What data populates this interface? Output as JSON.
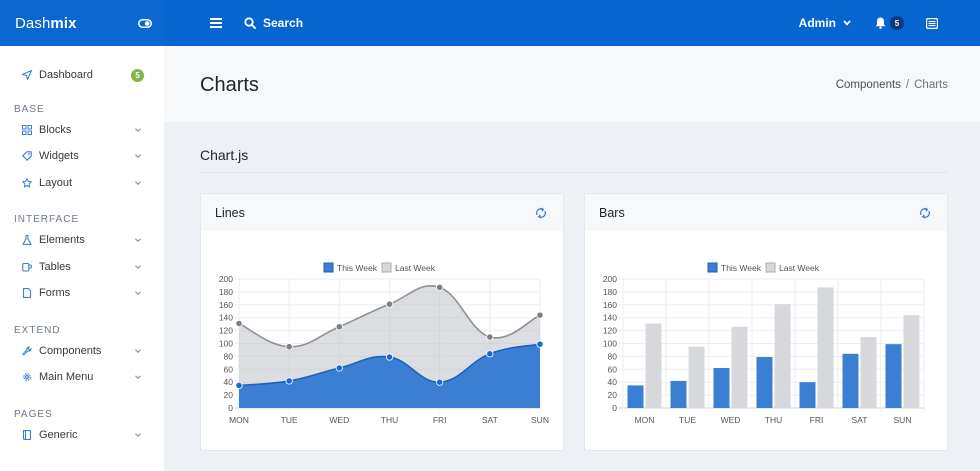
{
  "brand": {
    "prefix": "Dash",
    "suffix": "mix"
  },
  "sidebar": {
    "items": [
      {
        "label": "Dashboard",
        "badge": "5",
        "icon": "send-icon"
      },
      {
        "header": "BASE"
      },
      {
        "label": "Blocks",
        "icon": "grid-icon"
      },
      {
        "label": "Widgets",
        "icon": "tag-icon"
      },
      {
        "label": "Layout",
        "icon": "star-icon"
      },
      {
        "header": "INTERFACE"
      },
      {
        "label": "Elements",
        "icon": "flask-icon"
      },
      {
        "label": "Tables",
        "icon": "mug-icon"
      },
      {
        "label": "Forms",
        "icon": "file-icon"
      },
      {
        "header": "EXTEND"
      },
      {
        "label": "Components",
        "icon": "wrench-icon"
      },
      {
        "label": "Main Menu",
        "icon": "cog-icon"
      },
      {
        "header": "PAGES"
      },
      {
        "label": "Generic",
        "icon": "book-icon"
      }
    ]
  },
  "header": {
    "search_label": "Search",
    "user_label": "Admin",
    "notification_count": "5"
  },
  "hero": {
    "title": "Charts",
    "breadcrumb": [
      "Components",
      "Charts"
    ]
  },
  "section": {
    "title": "Chart.js"
  },
  "colors": {
    "this_week": "#3a7fd3",
    "last_week": "#d6d8dc",
    "brand": "#0665d0"
  },
  "chart_data": [
    {
      "type": "area",
      "block_title": "Lines",
      "categories": [
        "MON",
        "TUE",
        "WED",
        "THU",
        "FRI",
        "SAT",
        "SUN"
      ],
      "series": [
        {
          "name": "This Week",
          "values": [
            35,
            42,
            62,
            79,
            40,
            84,
            99
          ]
        },
        {
          "name": "Last Week",
          "values": [
            131,
            95,
            126,
            161,
            187,
            110,
            144
          ]
        }
      ],
      "ylim": [
        0,
        200
      ],
      "yticks": [
        0,
        20,
        40,
        60,
        80,
        100,
        120,
        140,
        160,
        180,
        200
      ],
      "legend": "top",
      "grid": true
    },
    {
      "type": "bar",
      "block_title": "Bars",
      "categories": [
        "MON",
        "TUE",
        "WED",
        "THU",
        "FRI",
        "SAT",
        "SUN"
      ],
      "series": [
        {
          "name": "This Week",
          "values": [
            35,
            42,
            62,
            79,
            40,
            84,
            99
          ]
        },
        {
          "name": "Last Week",
          "values": [
            131,
            95,
            126,
            161,
            187,
            110,
            144
          ]
        }
      ],
      "ylim": [
        0,
        200
      ],
      "yticks": [
        0,
        20,
        40,
        60,
        80,
        100,
        120,
        140,
        160,
        180,
        200
      ],
      "legend": "top",
      "grid": true
    }
  ]
}
